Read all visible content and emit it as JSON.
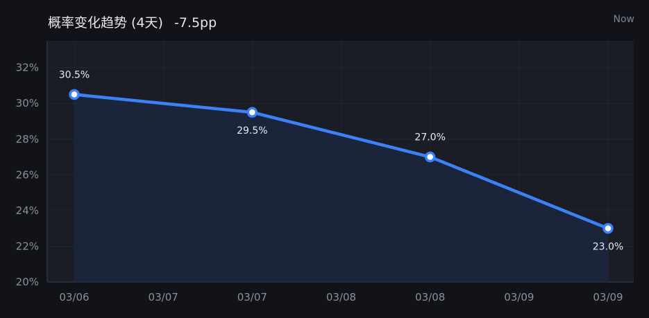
{
  "header": {
    "title": "概率变化趋势 (4天)",
    "change": "-7.5pp",
    "now_label": "Now"
  },
  "colors": {
    "background": "#111318",
    "plot_background": "#1a1c26",
    "line": "#3b82f6",
    "area_fill": "#1b2740",
    "grid": "#232634",
    "axis": "#2e3240"
  },
  "chart_data": {
    "type": "line",
    "title": "",
    "xlabel": "",
    "ylabel": "",
    "x_ticks": [
      "03/06",
      "03/07",
      "03/07",
      "03/08",
      "03/08",
      "03/09",
      "03/09"
    ],
    "series": [
      {
        "points": [
          {
            "x": 0,
            "y": 30.5,
            "label": "30.5%",
            "label_pos": "above"
          },
          {
            "x": 2,
            "y": 29.5,
            "label": "29.5%",
            "label_pos": "below"
          },
          {
            "x": 4,
            "y": 27.0,
            "label": "27.0%",
            "label_pos": "above"
          },
          {
            "x": 6,
            "y": 23.0,
            "label": "23.0%",
            "label_pos": "below"
          }
        ]
      }
    ],
    "ylim": [
      20,
      33.5
    ],
    "y_ticks": [
      20,
      22,
      24,
      26,
      28,
      30,
      32
    ],
    "y_tick_suffix": "%",
    "grid": true,
    "legend": "none"
  }
}
